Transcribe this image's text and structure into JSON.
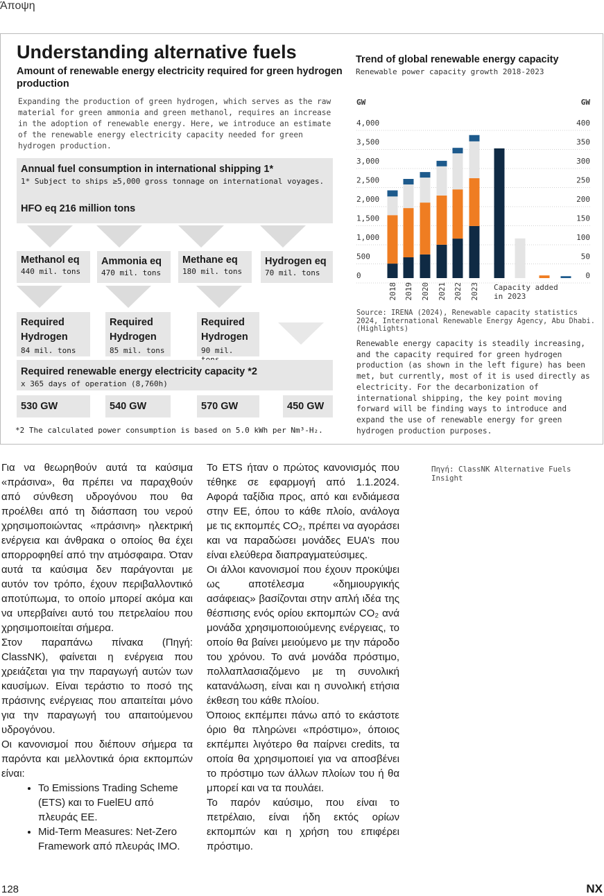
{
  "header": {
    "section": "Άποψη"
  },
  "infographic": {
    "title": "Understanding alternative fuels",
    "subtitle": "Amount of renewable energy electricity required for green hydrogen production",
    "intro": "Expanding the production of green hydrogen, which serves as the raw material for green ammonia and green methanol, requires an increase in the adoption of renewable energy. Here, we introduce an estimate of the renewable energy electricity capacity needed for green hydrogen production.",
    "consumption": {
      "title": "Annual fuel consumption in international shipping 1*",
      "note": "1* Subject to ships ≥5,000 gross tonnage on international voyages.",
      "total": "HFO eq 216 million tons"
    },
    "fuels": [
      {
        "name": "Methanol eq",
        "amount": "440 mil. tons"
      },
      {
        "name": "Ammonia eq",
        "amount": "470 mil. tons"
      },
      {
        "name": "Methane eq",
        "amount": "180 mil. tons"
      },
      {
        "name": "Hydrogen eq",
        "amount": "70 mil. tons"
      }
    ],
    "hydrogen": [
      {
        "label": "Required Hydrogen",
        "amount": "84 mil. tons"
      },
      {
        "label": "Required Hydrogen",
        "amount": "85 mil. tons"
      },
      {
        "label": "Required Hydrogen",
        "amount": "90 mil. tons"
      }
    ],
    "capacity": {
      "title": "Required renewable energy electricity capacity *2",
      "note": "x 365 days of operation (8,760h)",
      "values": [
        "530 GW",
        "540 GW",
        "570 GW",
        "450 GW"
      ]
    },
    "footnote": "*2 The calculated power consumption is based on 5.0 kWh per Nm³-H₂."
  },
  "chart_data": {
    "type": "bar",
    "stacked": true,
    "title": "Trend of global renewable energy capacity",
    "subtitle": "Renewable power capacity growth 2018-2023",
    "y_label": "GW",
    "y2_label": "GW",
    "categories": [
      "2018",
      "2019",
      "2020",
      "2021",
      "2022",
      "2023"
    ],
    "series": [
      {
        "color": "#0f2a44",
        "values": [
          380,
          545,
          620,
          875,
          1035,
          1365
        ]
      },
      {
        "color": "#ef7d22",
        "values": [
          1270,
          1290,
          1360,
          1290,
          1290,
          1255
        ]
      },
      {
        "color": "#e4e4e4",
        "values": [
          490,
          620,
          655,
          765,
          945,
          965
        ]
      },
      {
        "color": "#1d5a8c",
        "values": [
          160,
          145,
          145,
          145,
          145,
          165
        ]
      }
    ],
    "added": {
      "label": "Capacity added in 2023",
      "axis": "y2",
      "values": [
        340,
        104,
        7,
        5
      ],
      "colors": [
        "#0f2a44",
        "#e4e4e4",
        "#ef7d22",
        "#1d5a8c"
      ]
    },
    "ylim": [
      0,
      4000
    ],
    "yticks": [
      0,
      500,
      {
        "value": 1000,
        "label": "1,000"
      },
      {
        "value": 1500,
        "label": "1,500"
      },
      {
        "value": 2000,
        "label": "2,000"
      },
      {
        "value": 2500,
        "label": "2,500"
      },
      {
        "value": 3000,
        "label": "3,000"
      },
      {
        "value": 3500,
        "label": "3,500"
      },
      {
        "value": 4000,
        "label": "4,000"
      }
    ],
    "y2lim": [
      0,
      400
    ],
    "y2ticks": [
      0,
      50,
      100,
      150,
      200,
      250,
      300,
      350,
      400
    ],
    "grid": true
  },
  "chart_notes": {
    "source": "Source: IRENA (2024), Renewable capacity statistics 2024, International Renewable Energy Agency, Abu Dhabi. (Highlights)",
    "description": "Renewable energy capacity is steadily increasing, and the capacity required for green hydrogen production (as shown in the left figure) has been met, but currently, most of it is used directly as electricity. For the decarbonization of international shipping, the key point moving forward will be finding ways to introduce and expand the use of renewable energy for green hydrogen production purposes."
  },
  "article": {
    "col1": [
      "Για να θεωρηθούν αυτά τα καύσιμα «πράσινα», θα πρέπει να παραχθούν από σύνθεση υδρογόνου που θα προέλθει από τη διάσπαση του νερού χρησιμοποιώντας «πράσινη» ηλεκτρική ενέργεια και άνθρακα ο οποίος θα έχει απορροφηθεί από την ατμόσφαιρα. Όταν αυτά τα καύσιμα δεν παράγονται με αυτόν τον τρόπο, έχουν περιβαλλοντικό αποτύπωμα, το οποίο μπορεί ακόμα και να υπερβαίνει αυτό του πετρελαίου που χρησιμοποιείται σήμερα.",
      "Στον παραπάνω πίνακα (Πηγή: ClassNK), φαίνεται η ενέργεια που χρειάζεται για την παραγωγή αυτών των καυσίμων. Είναι τεράστιο το ποσό της πράσινης ενέργειας που απαιτείται μόνο για την παραγωγή του απαιτούμενου υδρογόνου.",
      "Οι κανονισμοί που διέπουν σήμερα τα παρόντα και μελλοντικά όρια εκπομπών είναι:"
    ],
    "bullets": [
      "To Emissions Trading Scheme (ETS) και το FuelEU από πλευράς ΕΕ.",
      "Mid-Term Measures: Net-Zero Framework από πλευράς IMO."
    ],
    "col2": [
      "Το ETS ήταν ο πρώτος κανονισμός που τέθηκε σε εφαρμογή από 1.1.2024. Αφορά ταξίδια προς, από και ενδιάμεσα στην ΕΕ, όπου το κάθε πλοίο, ανάλογα με τις εκπομπές CO₂, πρέπει να αγοράσει και να παραδώσει μονάδες EUA’s που είναι ελεύθερα διαπραγματεύσιμες.",
      "Οι άλλοι κανονισμοί που έχουν προκύψει ως αποτέλεσμα «δημιουργικής ασάφειας» βασίζονται στην απλή ιδέα της θέσπισης ενός ορίου εκπομπών CO₂ ανά μονάδα χρησιμοποιούμενης ενέργειας, το οποίο θα βαίνει μειούμενο με την πάροδο του χρόνου. Το ανά μονάδα πρόστιμο, πολλαπλασιαζόμενο με τη συνολική κατανάλωση, είναι και η συνολική ετήσια έκθεση του κάθε πλοίου.",
      "Όποιος εκπέμπει πάνω από το εκάστοτε όριο θα πληρώνει «πρόστιμο», όποιος εκπέμπει λιγότερο θα παίρνει credits, τα οποία θα χρησιμοποιεί για να αποσβένει το πρόστιμο των άλλων πλοίων του ή θα μπορεί και να τα πουλάει.",
      "Το παρόν καύσιμο, που είναι το πετρέλαιο, είναι ήδη εκτός ορίων εκπομπών και η χρήση του επιφέρει πρόστιμο."
    ],
    "source": "Πηγή: ClassNK Alternative Fuels Insight"
  },
  "footer": {
    "page": "128",
    "brand": "NX"
  }
}
